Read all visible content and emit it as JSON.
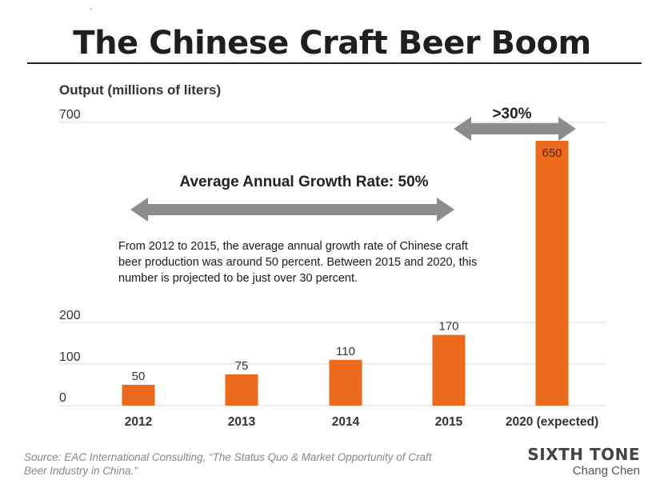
{
  "corner_mark": "-",
  "title": "The Chinese Craft Beer Boom",
  "chart_data": {
    "type": "bar",
    "title": "The Chinese Craft Beer Boom",
    "ylabel": "Output (millions of liters)",
    "xlabel": "",
    "categories": [
      "2012",
      "2013",
      "2014",
      "2015",
      "2020 (expected)"
    ],
    "values": [
      50,
      75,
      110,
      170,
      650
    ],
    "value_labels": [
      "50",
      "75",
      "110",
      "170",
      "650"
    ],
    "ylim": [
      0,
      700
    ],
    "axis_break": "between 200 and 700",
    "y_ticks": [
      "0",
      "100",
      "200",
      "700"
    ],
    "grid": true,
    "bar_color": "#ec6a1c",
    "annotations": {
      "growth_rate_label": "Average Annual Growth Rate: 50%",
      "growth_rate_2_label": ">30%",
      "note": "From 2012 to 2015, the average annual growth rate of Chinese craft beer production was around 50 percent. Between 2015 and 2020, this number is projected to be just over 30 percent.",
      "arrow_color": "#8c8c8c"
    }
  },
  "footer": {
    "source": "Source: EAC International Consulting, “The Status Quo & Market Opportunity of Craft Beer Industry in China.”",
    "brand": "SIXTH TONE",
    "author": "Chang Chen"
  }
}
